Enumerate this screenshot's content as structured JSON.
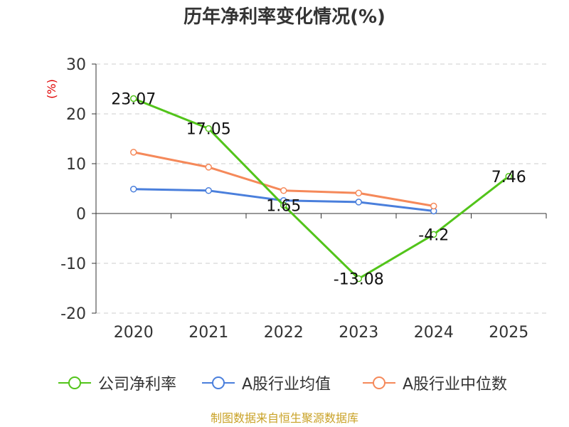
{
  "chart_data": {
    "type": "line",
    "title": "历年净利率变化情况(%)",
    "ylabel": "(%)",
    "xlabel": "",
    "categories": [
      "2020",
      "2021",
      "2022",
      "2023",
      "2024",
      "2025"
    ],
    "ylim": [
      -20,
      30
    ],
    "yticks": [
      "30",
      "20",
      "10",
      "0",
      "-10",
      "-20"
    ],
    "grid": true,
    "legend_position": "bottom",
    "series": [
      {
        "name": "公司净利率",
        "color": "#52c41a",
        "values": [
          23.07,
          17.05,
          1.65,
          -13.08,
          -4.2,
          7.46
        ],
        "labels": [
          "23.07",
          "17.05",
          "1.65",
          "-13.08",
          "-4.2",
          "7.46"
        ]
      },
      {
        "name": "A股行业均值",
        "color": "#4a7fdc",
        "values": [
          4.9,
          4.6,
          2.6,
          2.3,
          0.5,
          null
        ]
      },
      {
        "name": "A股行业中位数",
        "color": "#f5895a",
        "values": [
          12.3,
          9.3,
          4.6,
          4.1,
          1.5,
          null
        ]
      }
    ]
  },
  "footer": {
    "source": "制图数据来自恒生聚源数据库"
  },
  "colors": {
    "axis": "#333333",
    "grid": "#cccccc",
    "ylabel": "#e00000",
    "source": "#c9a227"
  }
}
